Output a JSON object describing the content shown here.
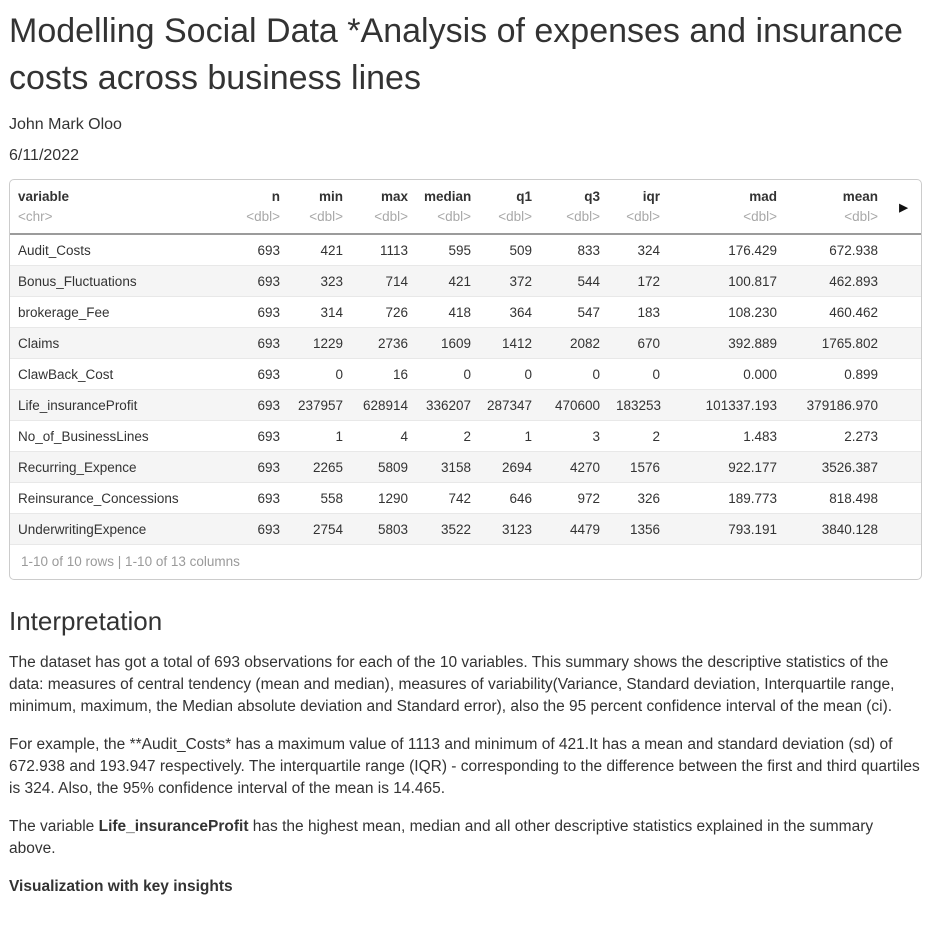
{
  "page": {
    "title": "Modelling Social Data *Analysis of expenses and insurance costs across business lines",
    "author": "John Mark Oloo",
    "date": "6/11/2022"
  },
  "table": {
    "columns": [
      {
        "name": "variable",
        "type": "<chr>"
      },
      {
        "name": "n",
        "type": "<dbl>"
      },
      {
        "name": "min",
        "type": "<dbl>"
      },
      {
        "name": "max",
        "type": "<dbl>"
      },
      {
        "name": "median",
        "type": "<dbl>"
      },
      {
        "name": "q1",
        "type": "<dbl>"
      },
      {
        "name": "q3",
        "type": "<dbl>"
      },
      {
        "name": "iqr",
        "type": "<dbl>"
      },
      {
        "name": "mad",
        "type": "<dbl>"
      },
      {
        "name": "mean",
        "type": "<dbl>"
      }
    ],
    "rows": [
      [
        "Audit_Costs",
        "693",
        "421",
        "1113",
        "595",
        "509",
        "833",
        "324",
        "176.429",
        "672.938"
      ],
      [
        "Bonus_Fluctuations",
        "693",
        "323",
        "714",
        "421",
        "372",
        "544",
        "172",
        "100.817",
        "462.893"
      ],
      [
        "brokerage_Fee",
        "693",
        "314",
        "726",
        "418",
        "364",
        "547",
        "183",
        "108.230",
        "460.462"
      ],
      [
        "Claims",
        "693",
        "1229",
        "2736",
        "1609",
        "1412",
        "2082",
        "670",
        "392.889",
        "1765.802"
      ],
      [
        "ClawBack_Cost",
        "693",
        "0",
        "16",
        "0",
        "0",
        "0",
        "0",
        "0.000",
        "0.899"
      ],
      [
        "Life_insuranceProfit",
        "693",
        "237957",
        "628914",
        "336207",
        "287347",
        "470600",
        "183253",
        "101337.193",
        "379186.970"
      ],
      [
        "No_of_BusinessLines",
        "693",
        "1",
        "4",
        "2",
        "1",
        "3",
        "2",
        "1.483",
        "2.273"
      ],
      [
        "Recurring_Expence",
        "693",
        "2265",
        "5809",
        "3158",
        "2694",
        "4270",
        "1576",
        "922.177",
        "3526.387"
      ],
      [
        "Reinsurance_Concessions",
        "693",
        "558",
        "1290",
        "742",
        "646",
        "972",
        "326",
        "189.773",
        "818.498"
      ],
      [
        "UnderwritingExpence",
        "693",
        "2754",
        "5803",
        "3522",
        "3123",
        "4479",
        "1356",
        "793.191",
        "3840.128"
      ]
    ],
    "next_columns_icon": "▶",
    "footer": "1-10 of 10 rows | 1-10 of 13 columns"
  },
  "interpretation": {
    "heading": "Interpretation",
    "p1": "The dataset has got a total of 693 observations for each of the 10 variables. This summary shows the descriptive statistics of the data: measures of central tendency (mean and median), measures of variability(Variance, Standard deviation, Interquartile range, minimum, maximum, the Median absolute deviation and Standard error), also the 95 percent confidence interval of the mean (ci).",
    "p2": "For example, the **Audit_Costs* has a maximum value of 1113 and minimum of 421.It has a mean and standard deviation (sd) of 672.938 and 193.947 respectively. The interquartile range (IQR) - corresponding to the difference between the first and third quartiles is 324. Also, the 95% confidence interval of the mean is 14.465.",
    "p3_prefix": "The variable ",
    "p3_bold": "Life_insuranceProfit",
    "p3_suffix": " has the highest mean, median and all other descriptive statistics explained in the summary above.",
    "p4": "Visualization with key insights"
  },
  "colors": {
    "text": "#333333",
    "muted": "#9a9a9a",
    "stripe": "#f5f5f5",
    "table_border": "#cccccc",
    "header_rule": "#9b9b9b"
  }
}
